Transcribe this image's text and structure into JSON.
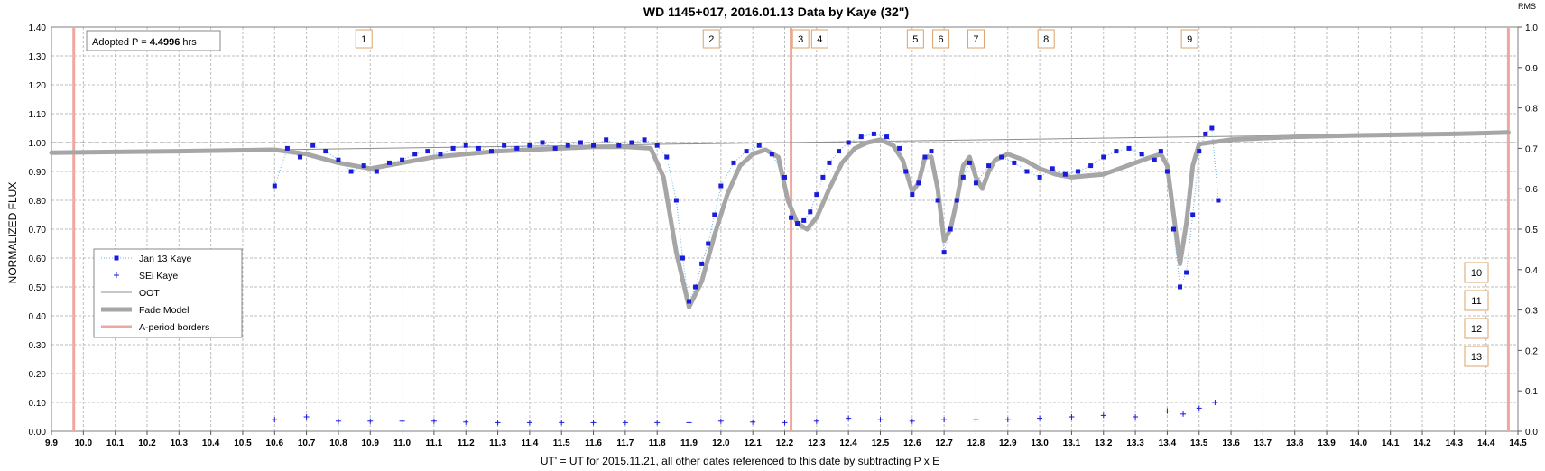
{
  "chart_data": {
    "type": "scatter",
    "title": "WD 1145+017, 2016.01.13 Data by Kaye (32\")",
    "xlabel": "UT' = UT for 2015.11.21, all other dates referenced to this date by subtracting P x E",
    "ylabel": "NORMALIZED FLUX",
    "y2label": "RMS",
    "xlim": [
      9.9,
      14.5
    ],
    "ylim": [
      0.0,
      1.4
    ],
    "y2lim": [
      0.0,
      1.0
    ],
    "xticks": [
      "9.9",
      "10.0",
      "10.1",
      "10.2",
      "10.3",
      "10.4",
      "10.5",
      "10.6",
      "10.7",
      "10.8",
      "10.9",
      "11.0",
      "11.1",
      "11.2",
      "11.3",
      "11.4",
      "11.5",
      "11.6",
      "11.7",
      "11.8",
      "11.9",
      "12.0",
      "12.1",
      "12.2",
      "12.3",
      "12.4",
      "12.5",
      "12.6",
      "12.7",
      "12.8",
      "12.9",
      "13.0",
      "13.1",
      "13.2",
      "13.3",
      "13.4",
      "13.5",
      "13.6",
      "13.7",
      "13.8",
      "13.9",
      "14.0",
      "14.1",
      "14.2",
      "14.3",
      "14.4",
      "14.5"
    ],
    "yticks": [
      "0.00",
      "0.10",
      "0.20",
      "0.30",
      "0.40",
      "0.50",
      "0.60",
      "0.70",
      "0.80",
      "0.90",
      "1.00",
      "1.10",
      "1.20",
      "1.30",
      "1.40"
    ],
    "y2ticks": [
      "0.0",
      "0.1",
      "0.2",
      "0.3",
      "0.4",
      "0.5",
      "0.6",
      "0.7",
      "0.8",
      "0.9",
      "1.0"
    ],
    "grid": true,
    "legend_position": "left-middle",
    "legend": [
      {
        "label": "Jan 13 Kaye",
        "color": "#1a1adb"
      },
      {
        "label": "SEi Kaye",
        "color": "#1a1adb"
      },
      {
        "label": "OOT",
        "color": "#8c8c8c"
      },
      {
        "label": "Fade Model",
        "color": "#a6a6a6"
      },
      {
        "label": "A-period borders",
        "color": "#f0a7a0"
      }
    ],
    "adopted_period": {
      "prefix": "Adopted P = ",
      "value": "4.4996",
      "unit": " hrs"
    },
    "reference_line_y": 1.0,
    "a_period_borders": [
      9.97,
      12.22,
      14.47
    ],
    "oot_line": {
      "x": [
        10.6,
        14.47
      ],
      "y": [
        0.975,
        1.035
      ]
    },
    "series": [
      {
        "name": "Jan 13 Kaye",
        "x": [
          10.6,
          10.64,
          10.68,
          10.72,
          10.76,
          10.8,
          10.84,
          10.88,
          10.92,
          10.96,
          11.0,
          11.04,
          11.08,
          11.12,
          11.16,
          11.2,
          11.24,
          11.28,
          11.32,
          11.36,
          11.4,
          11.44,
          11.48,
          11.52,
          11.56,
          11.6,
          11.64,
          11.68,
          11.72,
          11.76,
          11.8,
          11.83,
          11.86,
          11.88,
          11.9,
          11.92,
          11.94,
          11.96,
          11.98,
          12.0,
          12.04,
          12.08,
          12.12,
          12.16,
          12.2,
          12.22,
          12.24,
          12.26,
          12.28,
          12.3,
          12.32,
          12.34,
          12.37,
          12.4,
          12.44,
          12.48,
          12.52,
          12.56,
          12.58,
          12.6,
          12.62,
          12.64,
          12.66,
          12.68,
          12.7,
          12.72,
          12.74,
          12.76,
          12.78,
          12.8,
          12.84,
          12.88,
          12.92,
          12.96,
          13.0,
          13.04,
          13.08,
          13.12,
          13.16,
          13.2,
          13.24,
          13.28,
          13.32,
          13.36,
          13.38,
          13.4,
          13.42,
          13.44,
          13.46,
          13.48,
          13.5,
          13.52,
          13.54,
          13.56
        ],
        "y": [
          0.85,
          0.98,
          0.95,
          0.99,
          0.97,
          0.94,
          0.9,
          0.92,
          0.9,
          0.93,
          0.94,
          0.96,
          0.97,
          0.96,
          0.98,
          0.99,
          0.98,
          0.97,
          0.99,
          0.98,
          0.99,
          1.0,
          0.98,
          0.99,
          1.0,
          0.99,
          1.01,
          0.99,
          1.0,
          1.01,
          0.99,
          0.95,
          0.8,
          0.6,
          0.45,
          0.5,
          0.58,
          0.65,
          0.75,
          0.85,
          0.93,
          0.97,
          0.99,
          0.96,
          0.88,
          0.74,
          0.72,
          0.73,
          0.76,
          0.82,
          0.88,
          0.93,
          0.97,
          1.0,
          1.02,
          1.03,
          1.02,
          0.98,
          0.9,
          0.82,
          0.86,
          0.95,
          0.97,
          0.8,
          0.62,
          0.7,
          0.8,
          0.88,
          0.93,
          0.86,
          0.92,
          0.95,
          0.93,
          0.9,
          0.88,
          0.91,
          0.89,
          0.9,
          0.92,
          0.95,
          0.97,
          0.98,
          0.96,
          0.94,
          0.97,
          0.9,
          0.7,
          0.5,
          0.55,
          0.75,
          0.97,
          1.03,
          1.05,
          0.8
        ]
      },
      {
        "name": "SEi Kaye",
        "x": [
          10.6,
          10.7,
          10.8,
          10.9,
          11.0,
          11.1,
          11.2,
          11.3,
          11.4,
          11.5,
          11.6,
          11.7,
          11.8,
          11.9,
          12.0,
          12.1,
          12.2,
          12.3,
          12.4,
          12.5,
          12.6,
          12.7,
          12.8,
          12.9,
          13.0,
          13.1,
          13.2,
          13.3,
          13.4,
          13.45,
          13.5,
          13.55
        ],
        "y": [
          0.04,
          0.05,
          0.035,
          0.035,
          0.035,
          0.035,
          0.032,
          0.03,
          0.03,
          0.03,
          0.03,
          0.03,
          0.03,
          0.03,
          0.035,
          0.032,
          0.03,
          0.035,
          0.045,
          0.04,
          0.035,
          0.04,
          0.04,
          0.04,
          0.045,
          0.05,
          0.055,
          0.05,
          0.07,
          0.06,
          0.08,
          0.1
        ]
      },
      {
        "name": "Fade Model",
        "x": [
          9.9,
          10.3,
          10.6,
          10.7,
          10.8,
          10.9,
          11.0,
          11.1,
          11.2,
          11.3,
          11.4,
          11.5,
          11.6,
          11.7,
          11.78,
          11.82,
          11.86,
          11.9,
          11.94,
          11.98,
          12.02,
          12.06,
          12.1,
          12.14,
          12.18,
          12.21,
          12.24,
          12.27,
          12.3,
          12.34,
          12.38,
          12.42,
          12.46,
          12.5,
          12.54,
          12.57,
          12.6,
          12.62,
          12.64,
          12.66,
          12.68,
          12.7,
          12.72,
          12.74,
          12.76,
          12.78,
          12.8,
          12.82,
          12.84,
          12.86,
          12.9,
          12.95,
          13.0,
          13.05,
          13.1,
          13.15,
          13.2,
          13.25,
          13.3,
          13.35,
          13.38,
          13.4,
          13.42,
          13.44,
          13.46,
          13.48,
          13.5,
          13.6,
          13.8,
          14.0,
          14.3,
          14.47
        ],
        "y": [
          0.965,
          0.97,
          0.975,
          0.96,
          0.93,
          0.91,
          0.93,
          0.95,
          0.96,
          0.97,
          0.975,
          0.98,
          0.985,
          0.985,
          0.98,
          0.88,
          0.62,
          0.43,
          0.52,
          0.68,
          0.82,
          0.92,
          0.96,
          0.975,
          0.95,
          0.8,
          0.72,
          0.7,
          0.74,
          0.84,
          0.93,
          0.98,
          1.0,
          1.01,
          0.99,
          0.94,
          0.83,
          0.86,
          0.95,
          0.95,
          0.84,
          0.66,
          0.7,
          0.8,
          0.92,
          0.95,
          0.88,
          0.84,
          0.9,
          0.94,
          0.96,
          0.94,
          0.91,
          0.89,
          0.88,
          0.885,
          0.89,
          0.91,
          0.93,
          0.95,
          0.96,
          0.92,
          0.75,
          0.58,
          0.72,
          0.92,
          0.995,
          1.01,
          1.02,
          1.025,
          1.03,
          1.035
        ]
      }
    ],
    "event_markers": [
      {
        "label": "1",
        "x": 10.88
      },
      {
        "label": "2",
        "x": 11.97
      },
      {
        "label": "3",
        "x": 12.25
      },
      {
        "label": "4",
        "x": 12.31
      },
      {
        "label": "5",
        "x": 12.61
      },
      {
        "label": "6",
        "x": 12.69
      },
      {
        "label": "7",
        "x": 12.8
      },
      {
        "label": "8",
        "x": 13.02
      },
      {
        "label": "9",
        "x": 13.47
      }
    ],
    "side_markers": [
      "10",
      "11",
      "12",
      "13"
    ]
  }
}
